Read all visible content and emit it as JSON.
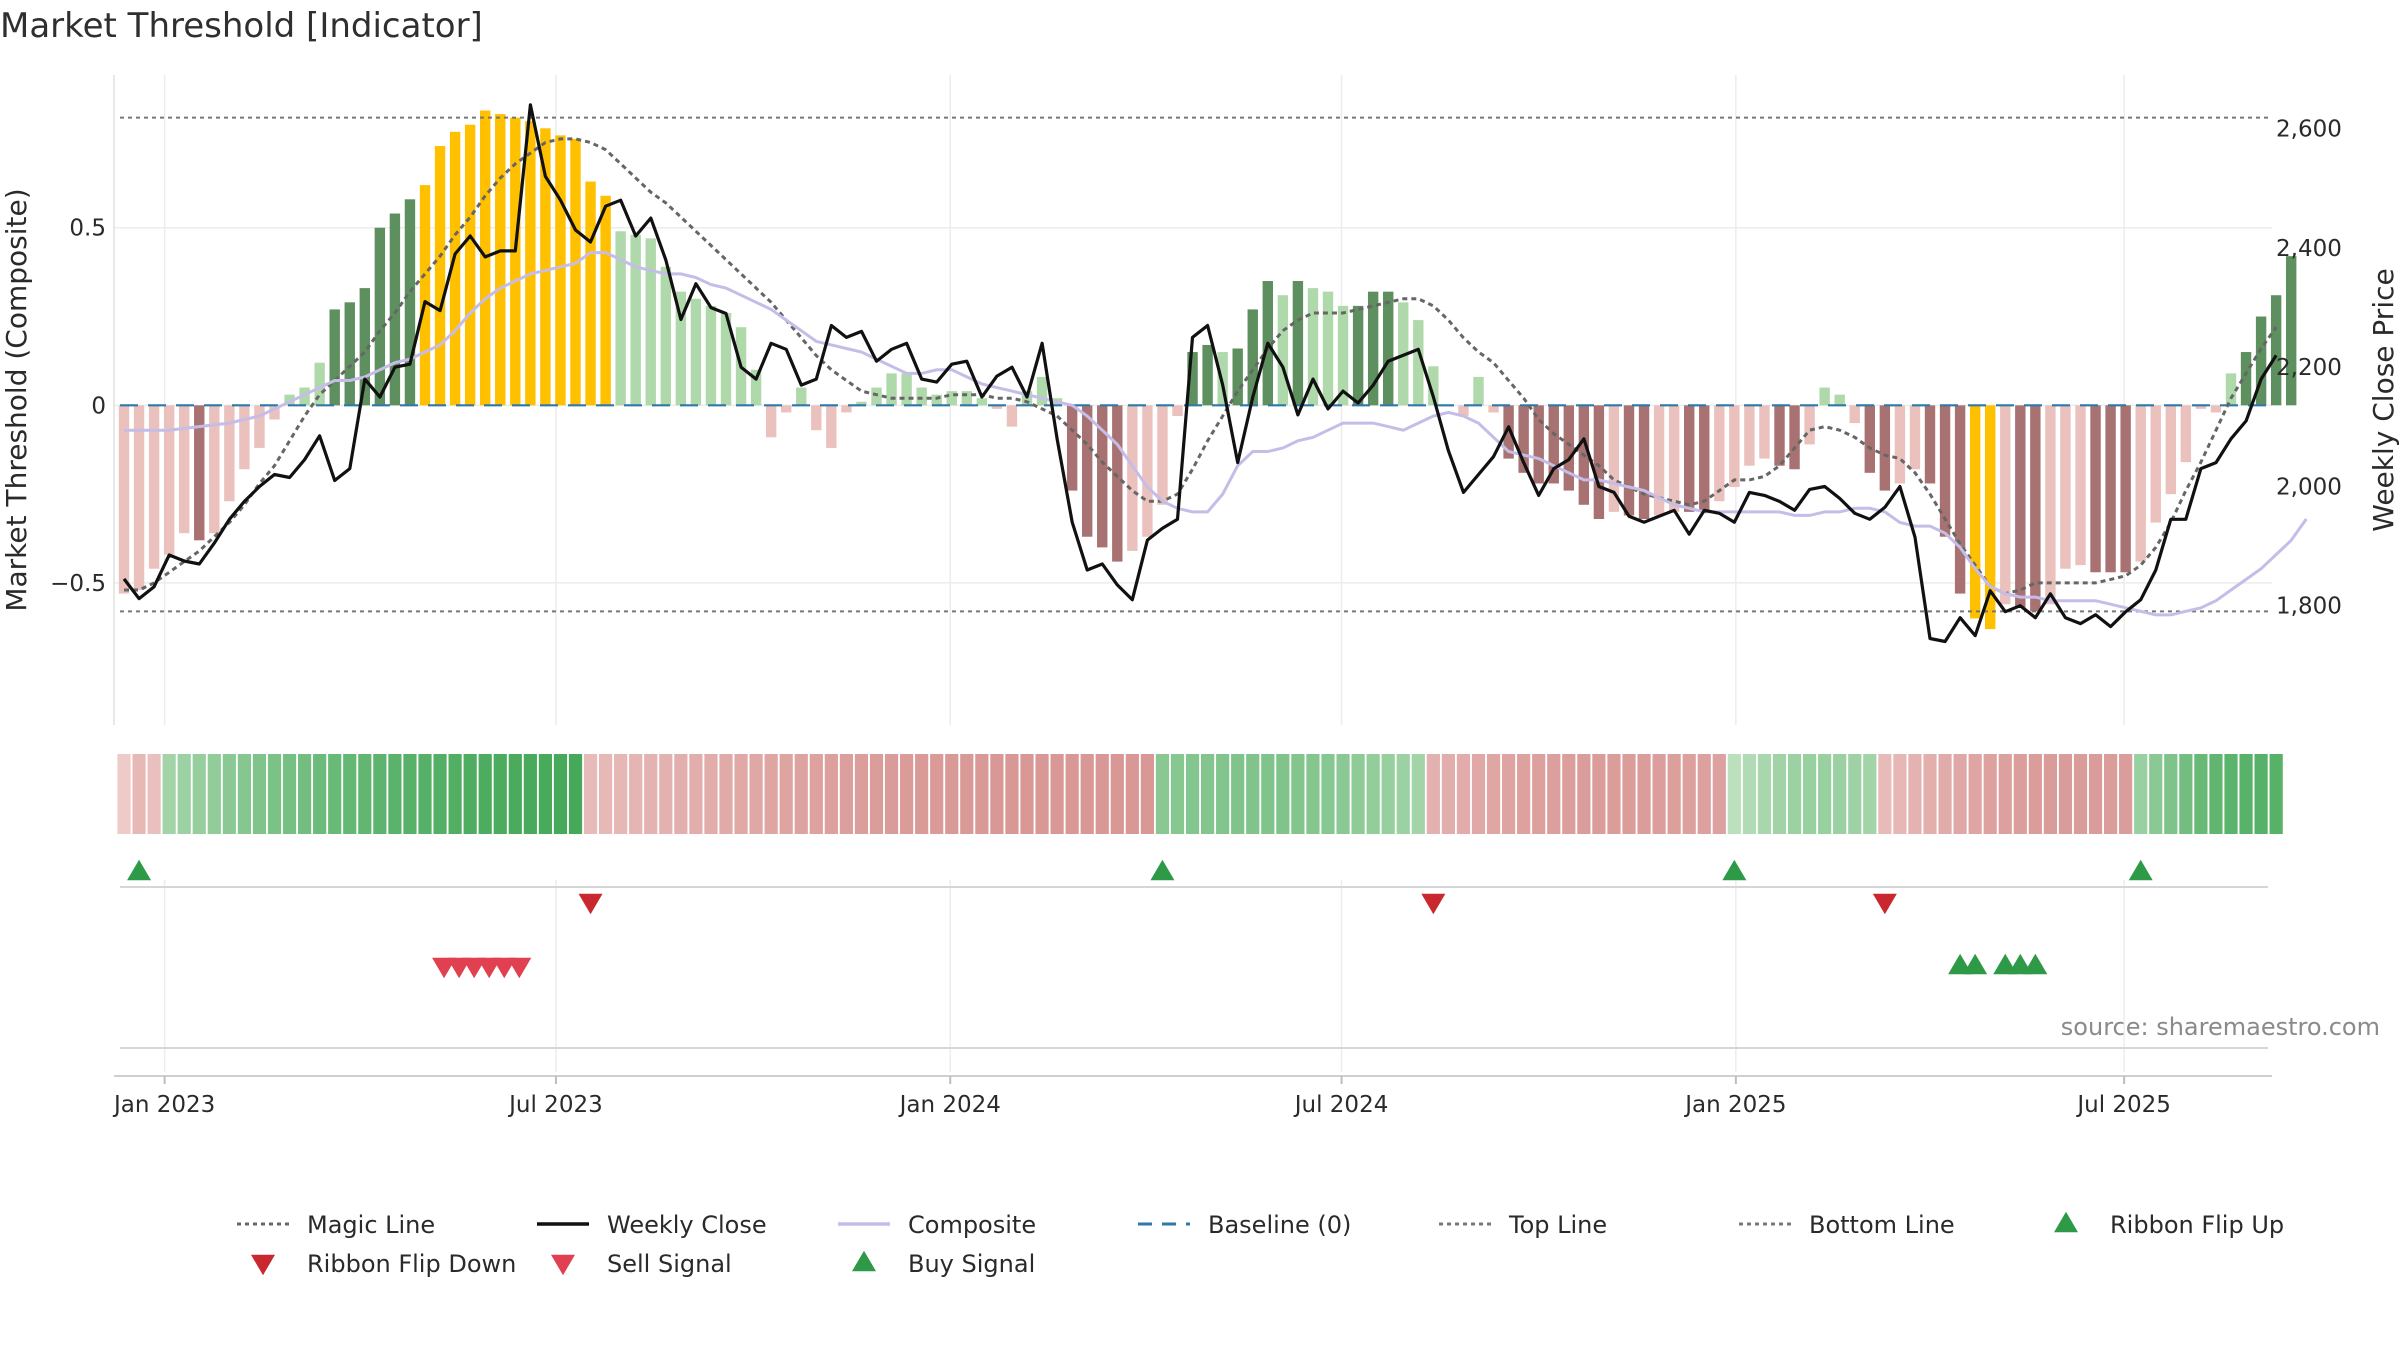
{
  "title": "Market Threshold [Indicator]",
  "source": "source: sharemaestro.com",
  "colors": {
    "strong_pos": "#5e8f5e",
    "weak_pos": "#b0d9ab",
    "strong_neg": "#a87272",
    "weak_neg": "#ebc1bd",
    "extreme": "#ffc000",
    "close": "#111111",
    "composite": "#c5bde8",
    "magic": "#666666",
    "baseline": "#2f78a8",
    "thresh": "#777777",
    "flip_up": "#2e9a47",
    "flip_down": "#c8282e",
    "sell": "#e0404f",
    "buy": "#2e9a47"
  },
  "chart_data": {
    "type": "bar",
    "title": "Market Threshold [Indicator]",
    "ylabel": "Market Threshold (Composite)",
    "y2label": "Weekly Close Price",
    "ylim": [
      -0.9,
      0.93
    ],
    "y2lim": [
      1600,
      2690
    ],
    "yticks": [
      {
        "v": 0.5,
        "label": "0.5"
      },
      {
        "v": 0,
        "label": "0"
      },
      {
        "v": -0.5,
        "label": "−0.5"
      }
    ],
    "y2ticks": [
      {
        "v": 2600,
        "label": "2,600"
      },
      {
        "v": 2400,
        "label": "2,400"
      },
      {
        "v": 2200,
        "label": "2,200"
      },
      {
        "v": 2000,
        "label": "2,000"
      },
      {
        "v": 1800,
        "label": "1,800"
      }
    ],
    "xticks": [
      {
        "w": 2.7,
        "label": "Jan 2023"
      },
      {
        "w": 28.7,
        "label": "Jul 2023"
      },
      {
        "w": 54.9,
        "label": "Jan 2024"
      },
      {
        "w": 80.9,
        "label": "Jul 2024"
      },
      {
        "w": 107.1,
        "label": "Jan 2025"
      },
      {
        "w": 132.9,
        "label": "Jul 2025"
      }
    ],
    "top_line": 0.81,
    "bottom_line": -0.58,
    "baseline": 0,
    "composite_bars": [
      -0.53,
      -0.52,
      -0.46,
      -0.42,
      -0.36,
      -0.38,
      -0.36,
      -0.27,
      -0.18,
      -0.12,
      -0.04,
      0.03,
      0.05,
      0.12,
      0.27,
      0.29,
      0.33,
      0.5,
      0.54,
      0.58,
      0.62,
      0.73,
      0.77,
      0.79,
      0.83,
      0.82,
      0.81,
      0.8,
      0.78,
      0.76,
      0.75,
      0.63,
      0.59,
      0.49,
      0.48,
      0.47,
      0.39,
      0.32,
      0.3,
      0.28,
      0.26,
      0.22,
      0.1,
      -0.09,
      -0.02,
      0.05,
      -0.07,
      -0.12,
      -0.02,
      0.01,
      0.05,
      0.09,
      0.09,
      0.05,
      0.03,
      0.04,
      0.04,
      0.02,
      -0.01,
      -0.06,
      0.04,
      0.08,
      0.02,
      -0.24,
      -0.37,
      -0.4,
      -0.44,
      -0.41,
      -0.37,
      -0.28,
      -0.03,
      0.15,
      0.17,
      0.15,
      0.16,
      0.27,
      0.35,
      0.31,
      0.35,
      0.33,
      0.32,
      0.28,
      0.28,
      0.32,
      0.32,
      0.29,
      0.24,
      0.11,
      0.0,
      -0.03,
      0.08,
      -0.02,
      -0.15,
      -0.19,
      -0.22,
      -0.22,
      -0.24,
      -0.28,
      -0.32,
      -0.3,
      -0.31,
      -0.32,
      -0.31,
      -0.3,
      -0.3,
      -0.3,
      -0.27,
      -0.23,
      -0.17,
      -0.15,
      -0.17,
      -0.18,
      -0.11,
      0.05,
      0.03,
      -0.05,
      -0.19,
      -0.24,
      -0.22,
      -0.18,
      -0.22,
      -0.37,
      -0.53,
      -0.6,
      -0.63,
      -0.56,
      -0.57,
      -0.58,
      -0.56,
      -0.46,
      -0.45,
      -0.47,
      -0.47,
      -0.47,
      -0.44,
      -0.33,
      -0.25,
      -0.16,
      -0.01,
      -0.02,
      0.09,
      0.15,
      0.25,
      0.31,
      0.42
    ],
    "weekly_close": [
      1845,
      1812,
      1832,
      1885,
      1875,
      1870,
      1905,
      1945,
      1975,
      2000,
      2020,
      2015,
      2045,
      2085,
      2010,
      2030,
      2180,
      2150,
      2200,
      2205,
      2310,
      2295,
      2390,
      2420,
      2385,
      2395,
      2395,
      2640,
      2520,
      2480,
      2430,
      2410,
      2470,
      2480,
      2420,
      2450,
      2380,
      2280,
      2340,
      2300,
      2290,
      2200,
      2180,
      2240,
      2230,
      2170,
      2180,
      2270,
      2250,
      2260,
      2210,
      2230,
      2240,
      2180,
      2175,
      2205,
      2210,
      2150,
      2185,
      2200,
      2150,
      2240,
      2080,
      1940,
      1860,
      1870,
      1835,
      1810,
      1910,
      1930,
      1945,
      2250,
      2270,
      2170,
      2040,
      2150,
      2240,
      2200,
      2120,
      2180,
      2130,
      2160,
      2140,
      2170,
      2210,
      2220,
      2230,
      2150,
      2060,
      1990,
      2020,
      2050,
      2100,
      2040,
      1985,
      2030,
      2045,
      2080,
      2000,
      1990,
      1950,
      1940,
      1950,
      1960,
      1920,
      1960,
      1955,
      1940,
      1990,
      1985,
      1975,
      1960,
      1995,
      2000,
      1980,
      1955,
      1945,
      1965,
      2000,
      1915,
      1745,
      1740,
      1780,
      1750,
      1825,
      1790,
      1800,
      1780,
      1820,
      1780,
      1770,
      1785,
      1765,
      1790,
      1810,
      1860,
      1945,
      1945,
      2030,
      2040,
      2080,
      2110,
      2180,
      2220
    ],
    "composite_line": [
      -0.07,
      -0.07,
      -0.07,
      -0.07,
      -0.065,
      -0.06,
      -0.055,
      -0.05,
      -0.04,
      -0.03,
      -0.01,
      0.01,
      0.03,
      0.05,
      0.07,
      0.07,
      0.08,
      0.1,
      0.12,
      0.13,
      0.15,
      0.17,
      0.21,
      0.26,
      0.3,
      0.33,
      0.35,
      0.37,
      0.38,
      0.39,
      0.4,
      0.43,
      0.43,
      0.41,
      0.39,
      0.38,
      0.37,
      0.37,
      0.36,
      0.34,
      0.33,
      0.31,
      0.29,
      0.27,
      0.24,
      0.21,
      0.18,
      0.17,
      0.16,
      0.15,
      0.13,
      0.11,
      0.09,
      0.09,
      0.1,
      0.1,
      0.08,
      0.06,
      0.05,
      0.04,
      0.03,
      0.02,
      0.01,
      0.0,
      -0.03,
      -0.07,
      -0.11,
      -0.17,
      -0.23,
      -0.27,
      -0.29,
      -0.3,
      -0.3,
      -0.25,
      -0.17,
      -0.13,
      -0.13,
      -0.12,
      -0.1,
      -0.09,
      -0.07,
      -0.05,
      -0.05,
      -0.05,
      -0.06,
      -0.07,
      -0.05,
      -0.03,
      -0.02,
      -0.03,
      -0.05,
      -0.09,
      -0.13,
      -0.14,
      -0.15,
      -0.17,
      -0.19,
      -0.21,
      -0.21,
      -0.22,
      -0.23,
      -0.24,
      -0.26,
      -0.28,
      -0.29,
      -0.3,
      -0.3,
      -0.3,
      -0.3,
      -0.3,
      -0.3,
      -0.31,
      -0.31,
      -0.3,
      -0.3,
      -0.29,
      -0.29,
      -0.3,
      -0.33,
      -0.34,
      -0.34,
      -0.36,
      -0.4,
      -0.46,
      -0.51,
      -0.53,
      -0.54,
      -0.54,
      -0.55,
      -0.55,
      -0.55,
      -0.55,
      -0.56,
      -0.57,
      -0.58,
      -0.59,
      -0.59,
      -0.58,
      -0.57,
      -0.55,
      -0.52,
      -0.49,
      -0.46,
      -0.42,
      -0.38,
      -0.32
    ],
    "magic_line": [
      -0.52,
      -0.52,
      -0.5,
      -0.47,
      -0.44,
      -0.41,
      -0.37,
      -0.33,
      -0.28,
      -0.22,
      -0.17,
      -0.1,
      -0.03,
      0.03,
      0.07,
      0.11,
      0.15,
      0.21,
      0.26,
      0.32,
      0.37,
      0.42,
      0.48,
      0.53,
      0.59,
      0.64,
      0.68,
      0.71,
      0.74,
      0.75,
      0.75,
      0.74,
      0.72,
      0.68,
      0.64,
      0.6,
      0.57,
      0.53,
      0.49,
      0.45,
      0.41,
      0.37,
      0.33,
      0.29,
      0.24,
      0.19,
      0.14,
      0.1,
      0.07,
      0.04,
      0.03,
      0.02,
      0.02,
      0.02,
      0.02,
      0.03,
      0.03,
      0.03,
      0.02,
      0.02,
      0.01,
      -0.01,
      -0.03,
      -0.07,
      -0.11,
      -0.16,
      -0.2,
      -0.24,
      -0.27,
      -0.27,
      -0.25,
      -0.18,
      -0.1,
      -0.03,
      0.04,
      0.1,
      0.16,
      0.21,
      0.24,
      0.26,
      0.26,
      0.26,
      0.27,
      0.28,
      0.29,
      0.3,
      0.3,
      0.28,
      0.24,
      0.19,
      0.15,
      0.12,
      0.07,
      0.02,
      -0.04,
      -0.08,
      -0.11,
      -0.14,
      -0.17,
      -0.21,
      -0.23,
      -0.25,
      -0.26,
      -0.27,
      -0.28,
      -0.27,
      -0.24,
      -0.21,
      -0.21,
      -0.2,
      -0.17,
      -0.12,
      -0.07,
      -0.06,
      -0.07,
      -0.09,
      -0.12,
      -0.14,
      -0.15,
      -0.19,
      -0.25,
      -0.32,
      -0.39,
      -0.45,
      -0.51,
      -0.53,
      -0.52,
      -0.5,
      -0.5,
      -0.5,
      -0.5,
      -0.5,
      -0.49,
      -0.48,
      -0.45,
      -0.4,
      -0.33,
      -0.24,
      -0.16,
      -0.07,
      0.02,
      0.09,
      0.16,
      0.22
    ],
    "ribbon_segments": [
      {
        "start": 0,
        "end": 3,
        "dir": "neg",
        "v0": 0.2,
        "v1": 0.3
      },
      {
        "start": 3,
        "end": 31,
        "dir": "pos",
        "v0": 0.4,
        "v1": 0.95
      },
      {
        "start": 31,
        "end": 69,
        "dir": "neg",
        "v0": 0.35,
        "v1": 0.7
      },
      {
        "start": 69,
        "end": 87,
        "dir": "pos",
        "v0": 0.55,
        "v1": 0.4
      },
      {
        "start": 87,
        "end": 107,
        "dir": "neg",
        "v0": 0.45,
        "v1": 0.6
      },
      {
        "start": 107,
        "end": 117,
        "dir": "pos",
        "v0": 0.25,
        "v1": 0.4
      },
      {
        "start": 117,
        "end": 134,
        "dir": "neg",
        "v0": 0.35,
        "v1": 0.65
      },
      {
        "start": 134,
        "end": 144,
        "dir": "pos",
        "v0": 0.45,
        "v1": 0.85
      }
    ],
    "ribbon_flip_up_weeks": [
      1,
      69,
      107,
      134
    ],
    "ribbon_flip_down_weeks": [
      31,
      87,
      117
    ],
    "sell_signal_weeks": [
      21,
      22,
      23,
      24,
      25,
      26
    ],
    "buy_signal_weeks": [
      122,
      123,
      125,
      126,
      127
    ],
    "legend": [
      {
        "label": "Magic Line",
        "kind": "dotted",
        "color_key": "magic"
      },
      {
        "label": "Weekly Close",
        "kind": "solid",
        "color_key": "close"
      },
      {
        "label": "Composite",
        "kind": "solid",
        "color_key": "composite"
      },
      {
        "label": "Baseline (0)",
        "kind": "dashed",
        "color_key": "baseline"
      },
      {
        "label": "Top Line",
        "kind": "dotted",
        "color_key": "thresh"
      },
      {
        "label": "Bottom Line",
        "kind": "dotted",
        "color_key": "thresh"
      },
      {
        "label": "Ribbon Flip Up",
        "kind": "tri-up",
        "color_key": "flip_up"
      },
      {
        "label": "Ribbon Flip Down",
        "kind": "tri-down",
        "color_key": "flip_down"
      },
      {
        "label": "Sell Signal",
        "kind": "tri-down",
        "color_key": "sell"
      },
      {
        "label": "Buy Signal",
        "kind": "tri-up",
        "color_key": "buy"
      }
    ]
  }
}
